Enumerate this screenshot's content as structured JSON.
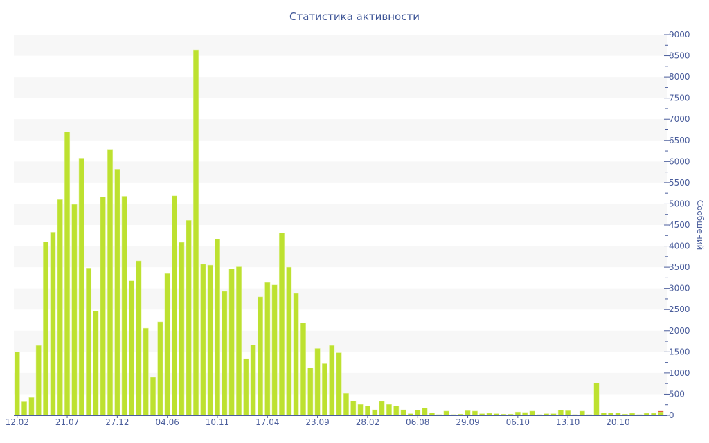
{
  "chart_data": {
    "type": "bar",
    "title": "Статистика активности",
    "xlabel": "",
    "ylabel": "Сообщений",
    "ylim": [
      0,
      9000
    ],
    "y_ticks": [
      0,
      500,
      1000,
      1500,
      2000,
      2500,
      3000,
      3500,
      4000,
      4500,
      5000,
      5500,
      6000,
      6500,
      7000,
      7500,
      8000,
      8500,
      9000
    ],
    "y_axis_position": "right",
    "grid": "alternating horizontal bands",
    "x_tick_labels": [
      "12.02",
      "21.07",
      "27.12",
      "04.06",
      "10.11",
      "17.04",
      "23.09",
      "28.02",
      "06.08",
      "29.09",
      "06.10",
      "13.10",
      "20.10"
    ],
    "x_tick_every": 7,
    "bar_color": "#bde130",
    "highlight_color": "#e0603a",
    "values": [
      1500,
      320,
      420,
      1650,
      4100,
      4330,
      5100,
      6700,
      4990,
      6080,
      3480,
      2460,
      5160,
      6290,
      5820,
      5180,
      3180,
      3650,
      2060,
      900,
      2210,
      3350,
      5190,
      4090,
      4610,
      8640,
      3570,
      3550,
      4160,
      2930,
      3460,
      3510,
      1340,
      1660,
      2800,
      3140,
      3080,
      4310,
      3500,
      2880,
      2180,
      1120,
      1580,
      1220,
      1650,
      1480,
      520,
      340,
      260,
      220,
      130,
      330,
      260,
      220,
      130,
      40,
      120,
      170,
      60,
      20,
      100,
      20,
      30,
      110,
      100,
      40,
      50,
      40,
      30,
      30,
      80,
      70,
      100,
      20,
      40,
      40,
      120,
      110,
      20,
      100,
      20,
      760,
      60,
      60,
      60,
      30,
      50,
      20,
      50,
      50,
      80
    ],
    "last_bar_highlight": 20
  }
}
